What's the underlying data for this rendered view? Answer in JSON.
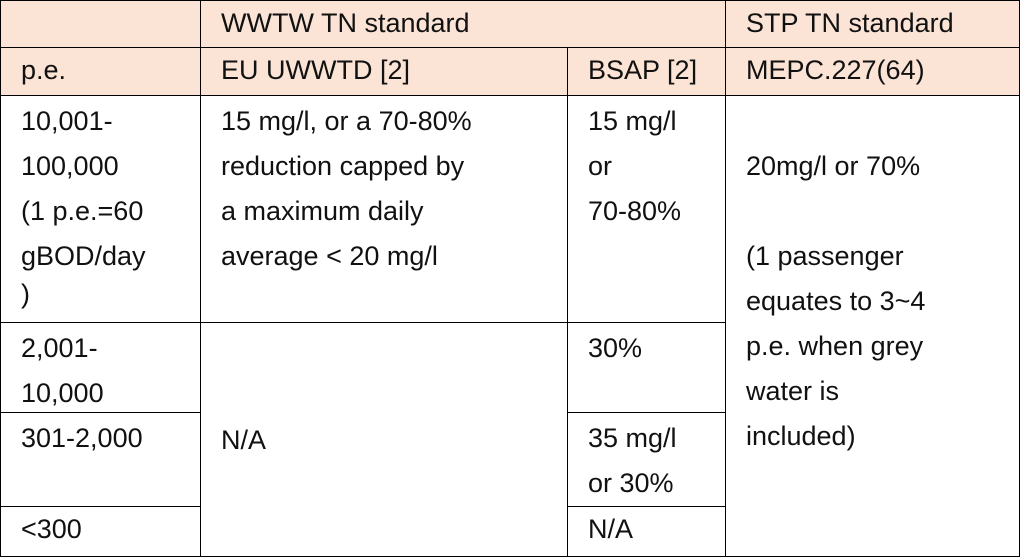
{
  "table": {
    "rows": [
      [
        "WWTW TN standard",
        "STP TN standard"
      ],
      [
        "p.e.",
        "EU UWWTD [2]",
        "BSAP [2]",
        "MEPC.227(64)"
      ],
      [
        [
          "10,001-",
          "100,000",
          "(1 p.e.=60",
          "gBOD/day",
          ")"
        ],
        [
          "15 mg/l, or a 70-80%",
          "reduction capped by",
          "a maximum daily",
          "average < 20 mg/l"
        ],
        [
          "15 mg/l",
          "or",
          "70-80%"
        ],
        [
          [
            "20mg/l or 70%"
          ],
          [
            "(1 passenger",
            "equates to 3~4",
            "p.e. when grey",
            "water is",
            "included)"
          ]
        ]
      ],
      [
        [
          "2,001-",
          "10,000"
        ],
        [
          "N/A"
        ],
        [
          "30%"
        ]
      ],
      [
        [
          "301-2,000"
        ],
        [
          "35 mg/l",
          "or 30%"
        ]
      ],
      [
        [
          "<300"
        ],
        [
          "N/A"
        ]
      ]
    ]
  }
}
